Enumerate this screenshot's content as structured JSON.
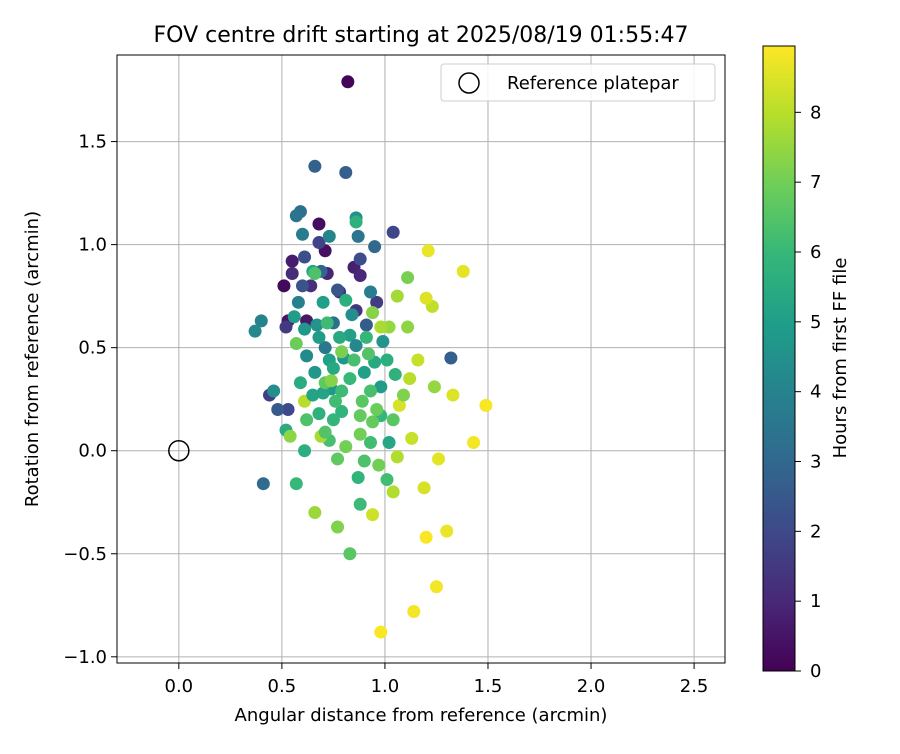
{
  "chart_data": {
    "type": "scatter",
    "title": "FOV centre drift starting at 2025/08/19 01:55:47",
    "xlabel": "Angular distance from reference (arcmin)",
    "ylabel": "Rotation from reference (arcmin)",
    "xlim": [
      -0.3,
      2.65
    ],
    "ylim": [
      -1.03,
      1.92
    ],
    "xticks": [
      0.0,
      0.5,
      1.0,
      1.5,
      2.0,
      2.5
    ],
    "xtick_labels": [
      "0.0",
      "0.5",
      "1.0",
      "1.5",
      "2.0",
      "2.5"
    ],
    "yticks": [
      -1.0,
      -0.5,
      0.0,
      0.5,
      1.0,
      1.5
    ],
    "ytick_labels": [
      "−1.0",
      "−0.5",
      "0.0",
      "0.5",
      "1.0",
      "1.5"
    ],
    "grid": true,
    "legend": {
      "position": "top-right",
      "label": "Reference platepar",
      "marker": "open-circle"
    },
    "reference_point": {
      "x": 0.0,
      "y": 0.0
    },
    "colorbar": {
      "label": "Hours from first FF file",
      "colormap": "viridis",
      "range": [
        0,
        8.95
      ],
      "ticks": [
        0,
        1,
        2,
        3,
        4,
        5,
        6,
        7,
        8
      ],
      "tick_labels": [
        "0",
        "1",
        "2",
        "3",
        "4",
        "5",
        "6",
        "7",
        "8"
      ],
      "colors": [
        "#440154",
        "#482878",
        "#3e4989",
        "#31688e",
        "#26828e",
        "#1f9e89",
        "#35b779",
        "#6ece58",
        "#b5de2b",
        "#fde725"
      ]
    },
    "series": [
      {
        "points": [
          [
            0.82,
            1.79,
            0.1
          ],
          [
            0.51,
            0.8,
            0.2
          ],
          [
            0.68,
            1.1,
            0.3
          ],
          [
            0.71,
            0.97,
            0.4
          ],
          [
            0.53,
            0.63,
            0.5
          ],
          [
            0.62,
            0.63,
            0.6
          ],
          [
            0.55,
            0.92,
            0.7
          ],
          [
            0.85,
            0.89,
            0.8
          ],
          [
            0.72,
            0.86,
            0.9
          ],
          [
            0.88,
            0.85,
            1.0
          ],
          [
            0.55,
            0.86,
            1.1
          ],
          [
            0.64,
            0.8,
            1.2
          ],
          [
            0.78,
            0.77,
            1.3
          ],
          [
            0.86,
            0.68,
            1.4
          ],
          [
            0.52,
            0.6,
            1.5
          ],
          [
            0.96,
            0.72,
            1.6
          ],
          [
            0.44,
            0.27,
            1.7
          ],
          [
            0.68,
            1.01,
            1.8
          ],
          [
            1.04,
            1.06,
            1.9
          ],
          [
            0.53,
            0.2,
            2.0
          ],
          [
            0.88,
            0.93,
            2.1
          ],
          [
            0.61,
            0.94,
            2.2
          ],
          [
            0.6,
            0.8,
            2.3
          ],
          [
            0.77,
            0.78,
            2.4
          ],
          [
            0.48,
            0.2,
            2.5
          ],
          [
            0.91,
            0.61,
            2.6
          ],
          [
            0.81,
            1.35,
            2.7
          ],
          [
            0.66,
            1.38,
            2.8
          ],
          [
            0.69,
            0.87,
            2.9
          ],
          [
            0.95,
            0.99,
            3.0
          ],
          [
            0.41,
            -0.16,
            3.1
          ],
          [
            0.59,
            1.16,
            3.2
          ],
          [
            0.75,
            0.62,
            3.3
          ],
          [
            0.57,
            1.14,
            3.4
          ],
          [
            0.87,
            1.04,
            3.5
          ],
          [
            0.71,
            0.5,
            3.6
          ],
          [
            0.6,
            1.05,
            3.7
          ],
          [
            0.93,
            0.77,
            3.8
          ],
          [
            0.58,
            0.72,
            3.9
          ],
          [
            0.4,
            0.63,
            4.0
          ],
          [
            0.73,
            1.04,
            4.1
          ],
          [
            0.37,
            0.58,
            4.2
          ],
          [
            0.62,
            0.46,
            4.3
          ],
          [
            0.46,
            0.29,
            4.4
          ],
          [
            0.86,
            1.13,
            4.5
          ],
          [
            0.67,
            0.61,
            4.6
          ],
          [
            0.8,
            0.45,
            4.7
          ],
          [
            0.74,
            0.3,
            4.8
          ],
          [
            0.56,
            0.65,
            4.9
          ],
          [
            0.9,
            0.38,
            5.0
          ],
          [
            0.83,
            0.56,
            5.1
          ],
          [
            0.7,
            0.28,
            5.2
          ],
          [
            0.65,
            0.87,
            5.3
          ],
          [
            0.95,
            0.43,
            5.4
          ],
          [
            0.52,
            0.1,
            5.5
          ],
          [
            0.61,
            0.0,
            5.6
          ],
          [
            0.86,
            1.11,
            5.7
          ],
          [
            0.79,
            0.19,
            5.8
          ],
          [
            0.98,
            0.17,
            5.9
          ],
          [
            0.57,
            -0.16,
            6.0
          ],
          [
            0.88,
            -0.26,
            6.1
          ],
          [
            1.01,
            -0.14,
            6.2
          ],
          [
            0.73,
            0.05,
            6.3
          ],
          [
            0.66,
            0.86,
            6.4
          ],
          [
            0.92,
            0.47,
            6.5
          ],
          [
            0.83,
            -0.5,
            6.6
          ],
          [
            0.71,
            0.33,
            6.7
          ],
          [
            0.88,
            0.17,
            6.8
          ],
          [
            0.57,
            0.52,
            6.9
          ],
          [
            0.97,
            -0.07,
            7.0
          ],
          [
            1.11,
            0.84,
            7.1
          ],
          [
            0.77,
            -0.37,
            7.2
          ],
          [
            0.74,
            0.34,
            7.3
          ],
          [
            0.54,
            0.07,
            7.4
          ],
          [
            1.02,
            0.6,
            7.5
          ],
          [
            0.66,
            -0.3,
            7.6
          ],
          [
            1.06,
            0.75,
            7.7
          ],
          [
            0.69,
            0.07,
            7.8
          ],
          [
            1.04,
            -0.2,
            7.9
          ],
          [
            0.61,
            0.24,
            8.0
          ],
          [
            1.23,
            0.7,
            8.1
          ],
          [
            1.16,
            0.44,
            8.2
          ],
          [
            0.94,
            -0.31,
            8.3
          ],
          [
            1.19,
            -0.18,
            8.4
          ],
          [
            1.2,
            0.74,
            8.5
          ],
          [
            1.38,
            0.87,
            8.6
          ],
          [
            1.21,
            0.97,
            8.7
          ],
          [
            1.14,
            -0.78,
            8.8
          ],
          [
            1.49,
            0.22,
            8.9
          ],
          [
            1.32,
            0.45,
            2.7
          ],
          [
            1.25,
            -0.66,
            8.8
          ],
          [
            1.3,
            -0.39,
            8.7
          ],
          [
            0.98,
            -0.88,
            8.9
          ],
          [
            1.43,
            0.04,
            8.8
          ],
          [
            1.33,
            0.27,
            8.5
          ],
          [
            1.24,
            0.31,
            7.5
          ],
          [
            1.26,
            -0.04,
            8.6
          ],
          [
            1.2,
            -0.42,
            8.9
          ],
          [
            1.07,
            0.22,
            8.4
          ],
          [
            1.13,
            0.06,
            8.2
          ],
          [
            0.85,
            0.44,
            6.3
          ],
          [
            0.78,
            0.55,
            5.4
          ],
          [
            0.98,
            0.31,
            4.9
          ],
          [
            0.93,
            0.04,
            6.2
          ],
          [
            1.01,
            0.44,
            5.6
          ],
          [
            0.81,
            0.02,
            7.0
          ],
          [
            0.89,
            0.24,
            6.6
          ],
          [
            0.66,
            0.38,
            4.7
          ],
          [
            0.75,
            0.15,
            5.9
          ],
          [
            0.84,
            0.66,
            4.4
          ],
          [
            0.94,
            0.14,
            6.8
          ],
          [
            0.87,
            -0.13,
            5.8
          ],
          [
            1.05,
            0.37,
            5.7
          ],
          [
            0.72,
            0.62,
            6.1
          ],
          [
            0.79,
            0.48,
            7.1
          ],
          [
            0.62,
            0.15,
            6.4
          ],
          [
            1.09,
            0.27,
            7.2
          ],
          [
            0.77,
            -0.04,
            6.7
          ],
          [
            1.02,
            0.04,
            5.3
          ],
          [
            0.68,
            0.55,
            4.9
          ],
          [
            0.59,
            0.33,
            5.5
          ],
          [
            0.91,
            0.55,
            5.9
          ],
          [
            0.96,
            0.2,
            6.9
          ],
          [
            0.71,
            0.09,
            6.5
          ],
          [
            1.11,
            0.6,
            7.4
          ],
          [
            0.83,
            0.35,
            6.0
          ],
          [
            0.65,
            0.27,
            5.2
          ],
          [
            0.99,
            0.53,
            4.6
          ],
          [
            0.76,
            0.24,
            6.2
          ],
          [
            1.06,
            -0.03,
            7.9
          ],
          [
            0.88,
            0.08,
            7.0
          ],
          [
            0.73,
            0.44,
            5.1
          ],
          [
            0.94,
            0.67,
            7.3
          ],
          [
            0.68,
            0.18,
            5.7
          ],
          [
            1.04,
            0.15,
            6.6
          ],
          [
            0.81,
            0.73,
            5.6
          ],
          [
            0.61,
            0.59,
            4.8
          ],
          [
            0.9,
            -0.05,
            6.4
          ],
          [
            0.98,
            0.6,
            7.8
          ],
          [
            0.79,
            0.29,
            6.1
          ],
          [
            1.12,
            0.35,
            8.0
          ],
          [
            0.86,
            0.51,
            4.2
          ],
          [
            0.7,
            0.72,
            5.0
          ],
          [
            0.93,
            0.29,
            6.3
          ],
          [
            0.75,
            0.4,
            5.4
          ]
        ]
      }
    ]
  }
}
